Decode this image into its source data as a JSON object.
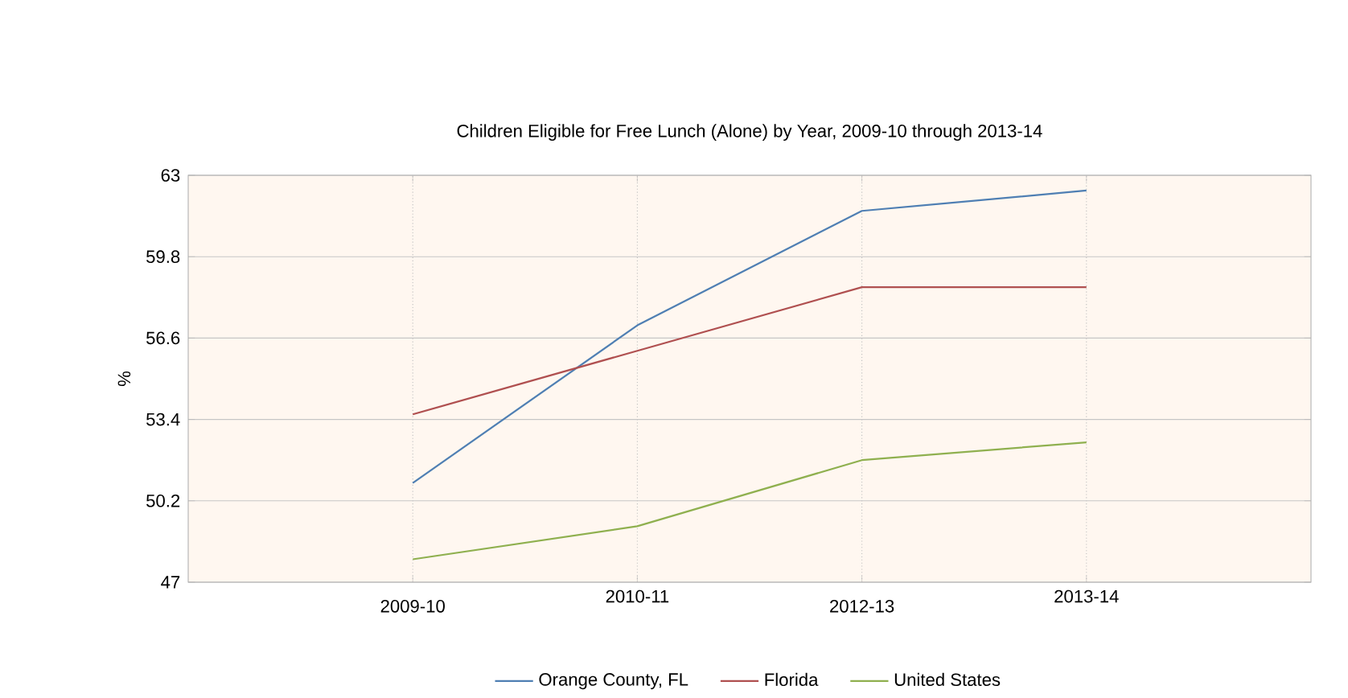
{
  "chart_data": {
    "type": "line",
    "title": "Children Eligible for Free Lunch (Alone) by Year, 2009-10 through 2013-14",
    "ylabel": "%",
    "categories": [
      "2009-10",
      "2010-11",
      "2012-13",
      "2013-14"
    ],
    "series": [
      {
        "name": "Orange County, FL",
        "color": "#4f7fb3",
        "values": [
          50.9,
          57.1,
          61.6,
          62.4
        ]
      },
      {
        "name": "Florida",
        "color": "#b05050",
        "values": [
          53.6,
          56.1,
          58.6,
          58.6
        ]
      },
      {
        "name": "United States",
        "color": "#8fb04f",
        "values": [
          47.9,
          49.2,
          51.8,
          52.5
        ]
      }
    ],
    "ylim": [
      47,
      63
    ],
    "yticks": [
      47,
      50.2,
      53.4,
      56.6,
      59.8,
      63
    ],
    "grid": true,
    "legend": "bottom",
    "marker": "none",
    "line_style": "solid"
  }
}
